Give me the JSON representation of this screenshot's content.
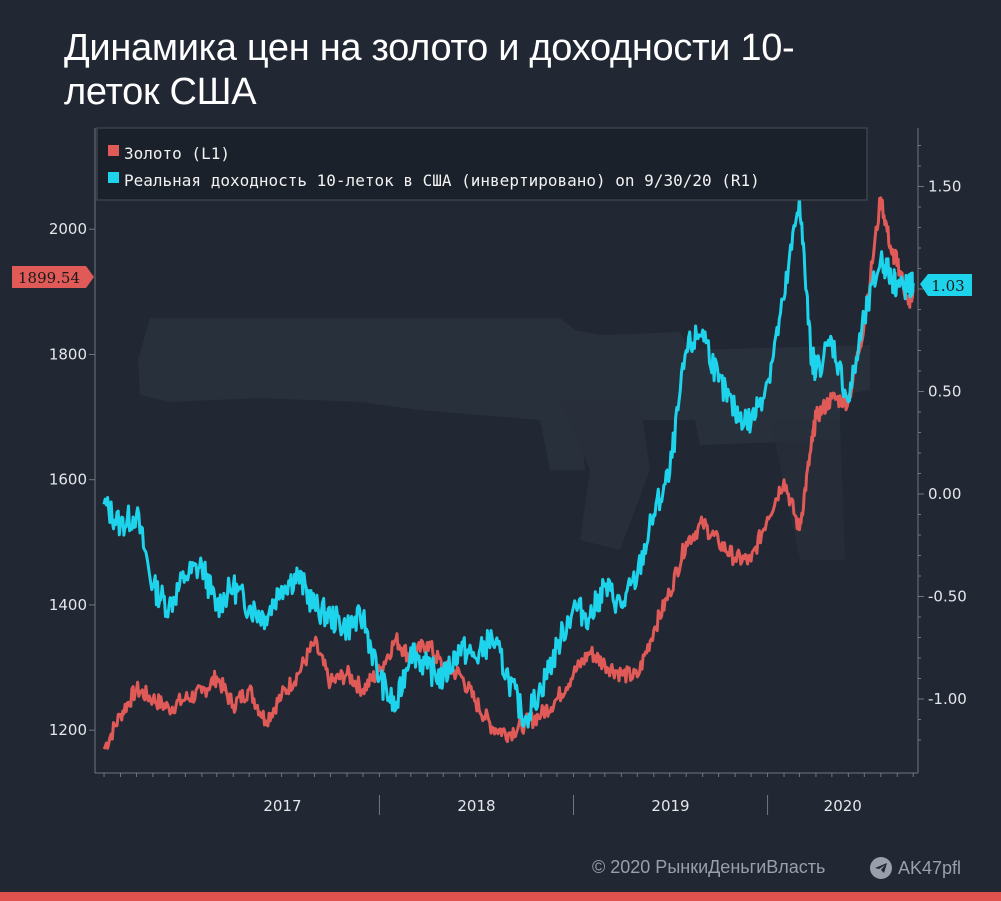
{
  "chart_data": {
    "type": "line",
    "title": "Динамика цен на золото и доходности 10-леток США",
    "x_range": [
      "2016-08",
      "2020-10"
    ],
    "x_tick_labels": [
      "2017",
      "2018",
      "2019",
      "2020"
    ],
    "left_axis": {
      "ylim": [
        1130,
        2160
      ],
      "ticks": [
        1200,
        1400,
        1600,
        1800,
        2000
      ]
    },
    "right_axis": {
      "ylim": [
        -1.25,
        1.8
      ],
      "tick_labels": [
        "1.50",
        "1.00",
        "0.50",
        "0.00",
        "-0.50",
        "-1.00"
      ],
      "tick_values": [
        1.5,
        1.0,
        0.5,
        0.0,
        -0.5,
        -1.0
      ]
    },
    "legend_placement": "top-left",
    "grid": false,
    "series": [
      {
        "name": "Золото (L1)",
        "axis": "left",
        "color": "#e05a58",
        "last_value_label": "1899.54",
        "points": [
          [
            "2016-08",
            1170
          ],
          [
            "2016-09",
            1225
          ],
          [
            "2016-10",
            1265
          ],
          [
            "2016-11",
            1250
          ],
          [
            "2016-12",
            1235
          ],
          [
            "2017-01",
            1250
          ],
          [
            "2017-02",
            1260
          ],
          [
            "2017-03",
            1285
          ],
          [
            "2017-04",
            1240
          ],
          [
            "2017-05",
            1265
          ],
          [
            "2017-06",
            1215
          ],
          [
            "2017-07",
            1255
          ],
          [
            "2017-08",
            1290
          ],
          [
            "2017-09",
            1340
          ],
          [
            "2017-10",
            1275
          ],
          [
            "2017-11",
            1290
          ],
          [
            "2017-12",
            1265
          ],
          [
            "2018-01",
            1295
          ],
          [
            "2018-02",
            1345
          ],
          [
            "2018-03",
            1315
          ],
          [
            "2018-04",
            1340
          ],
          [
            "2018-05",
            1300
          ],
          [
            "2018-06",
            1290
          ],
          [
            "2018-07",
            1245
          ],
          [
            "2018-08",
            1205
          ],
          [
            "2018-09",
            1195
          ],
          [
            "2018-10",
            1210
          ],
          [
            "2018-11",
            1225
          ],
          [
            "2018-12",
            1250
          ],
          [
            "2019-01",
            1290
          ],
          [
            "2019-02",
            1325
          ],
          [
            "2019-03",
            1305
          ],
          [
            "2019-04",
            1290
          ],
          [
            "2019-05",
            1285
          ],
          [
            "2019-06",
            1360
          ],
          [
            "2019-07",
            1420
          ],
          [
            "2019-08",
            1500
          ],
          [
            "2019-09",
            1530
          ],
          [
            "2019-10",
            1500
          ],
          [
            "2019-11",
            1475
          ],
          [
            "2019-12",
            1470
          ],
          [
            "2020-01",
            1540
          ],
          [
            "2020-02",
            1600
          ],
          [
            "2020-03",
            1520
          ],
          [
            "2020-03b",
            1645
          ],
          [
            "2020-04",
            1700
          ],
          [
            "2020-05",
            1730
          ],
          [
            "2020-06",
            1725
          ],
          [
            "2020-07",
            1850
          ],
          [
            "2020-08",
            2050
          ],
          [
            "2020-08b",
            1960
          ],
          [
            "2020-09",
            1950
          ],
          [
            "2020-09b",
            1880
          ],
          [
            "2020-10",
            1899.54
          ]
        ]
      },
      {
        "name": "Реальная доходность 10-леток в США (инвертировано) on 9/30/20 (R1)",
        "axis": "right",
        "color": "#1ed4ec",
        "last_value_label": "1.03",
        "points": [
          [
            "2016-08",
            -0.05
          ],
          [
            "2016-09",
            -0.15
          ],
          [
            "2016-10",
            -0.1
          ],
          [
            "2016-11",
            -0.45
          ],
          [
            "2016-12",
            -0.55
          ],
          [
            "2017-01",
            -0.4
          ],
          [
            "2017-02",
            -0.35
          ],
          [
            "2017-03",
            -0.55
          ],
          [
            "2017-04",
            -0.45
          ],
          [
            "2017-05",
            -0.55
          ],
          [
            "2017-06",
            -0.6
          ],
          [
            "2017-07",
            -0.45
          ],
          [
            "2017-08",
            -0.4
          ],
          [
            "2017-09",
            -0.55
          ],
          [
            "2017-10",
            -0.6
          ],
          [
            "2017-11",
            -0.65
          ],
          [
            "2017-12",
            -0.6
          ],
          [
            "2018-01",
            -0.9
          ],
          [
            "2018-02",
            -1.05
          ],
          [
            "2018-03",
            -0.75
          ],
          [
            "2018-04",
            -0.85
          ],
          [
            "2018-05",
            -0.9
          ],
          [
            "2018-06",
            -0.75
          ],
          [
            "2018-07",
            -0.8
          ],
          [
            "2018-08",
            -0.7
          ],
          [
            "2018-09",
            -0.9
          ],
          [
            "2018-10",
            -1.1
          ],
          [
            "2018-11",
            -0.95
          ],
          [
            "2018-12",
            -0.75
          ],
          [
            "2019-01",
            -0.55
          ],
          [
            "2019-02",
            -0.6
          ],
          [
            "2019-03",
            -0.45
          ],
          [
            "2019-04",
            -0.55
          ],
          [
            "2019-05",
            -0.4
          ],
          [
            "2019-06",
            -0.1
          ],
          [
            "2019-07",
            0.1
          ],
          [
            "2019-08",
            0.7
          ],
          [
            "2019-09",
            0.8
          ],
          [
            "2019-10",
            0.55
          ],
          [
            "2019-11",
            0.4
          ],
          [
            "2019-12",
            0.35
          ],
          [
            "2020-01",
            0.55
          ],
          [
            "2020-02",
            0.95
          ],
          [
            "2020-03",
            1.45
          ],
          [
            "2020-03b",
            0.7
          ],
          [
            "2020-04",
            0.6
          ],
          [
            "2020-05",
            0.75
          ],
          [
            "2020-06",
            0.45
          ],
          [
            "2020-07",
            0.85
          ],
          [
            "2020-08",
            1.15
          ],
          [
            "2020-08b",
            1.05
          ],
          [
            "2020-09",
            1.02
          ],
          [
            "2020-09b",
            1.0
          ],
          [
            "2020-10",
            1.03
          ]
        ]
      }
    ]
  },
  "footer": {
    "copyright": "© 2020  РынкиДеньгиВласть",
    "channel": "AK47pfl"
  }
}
